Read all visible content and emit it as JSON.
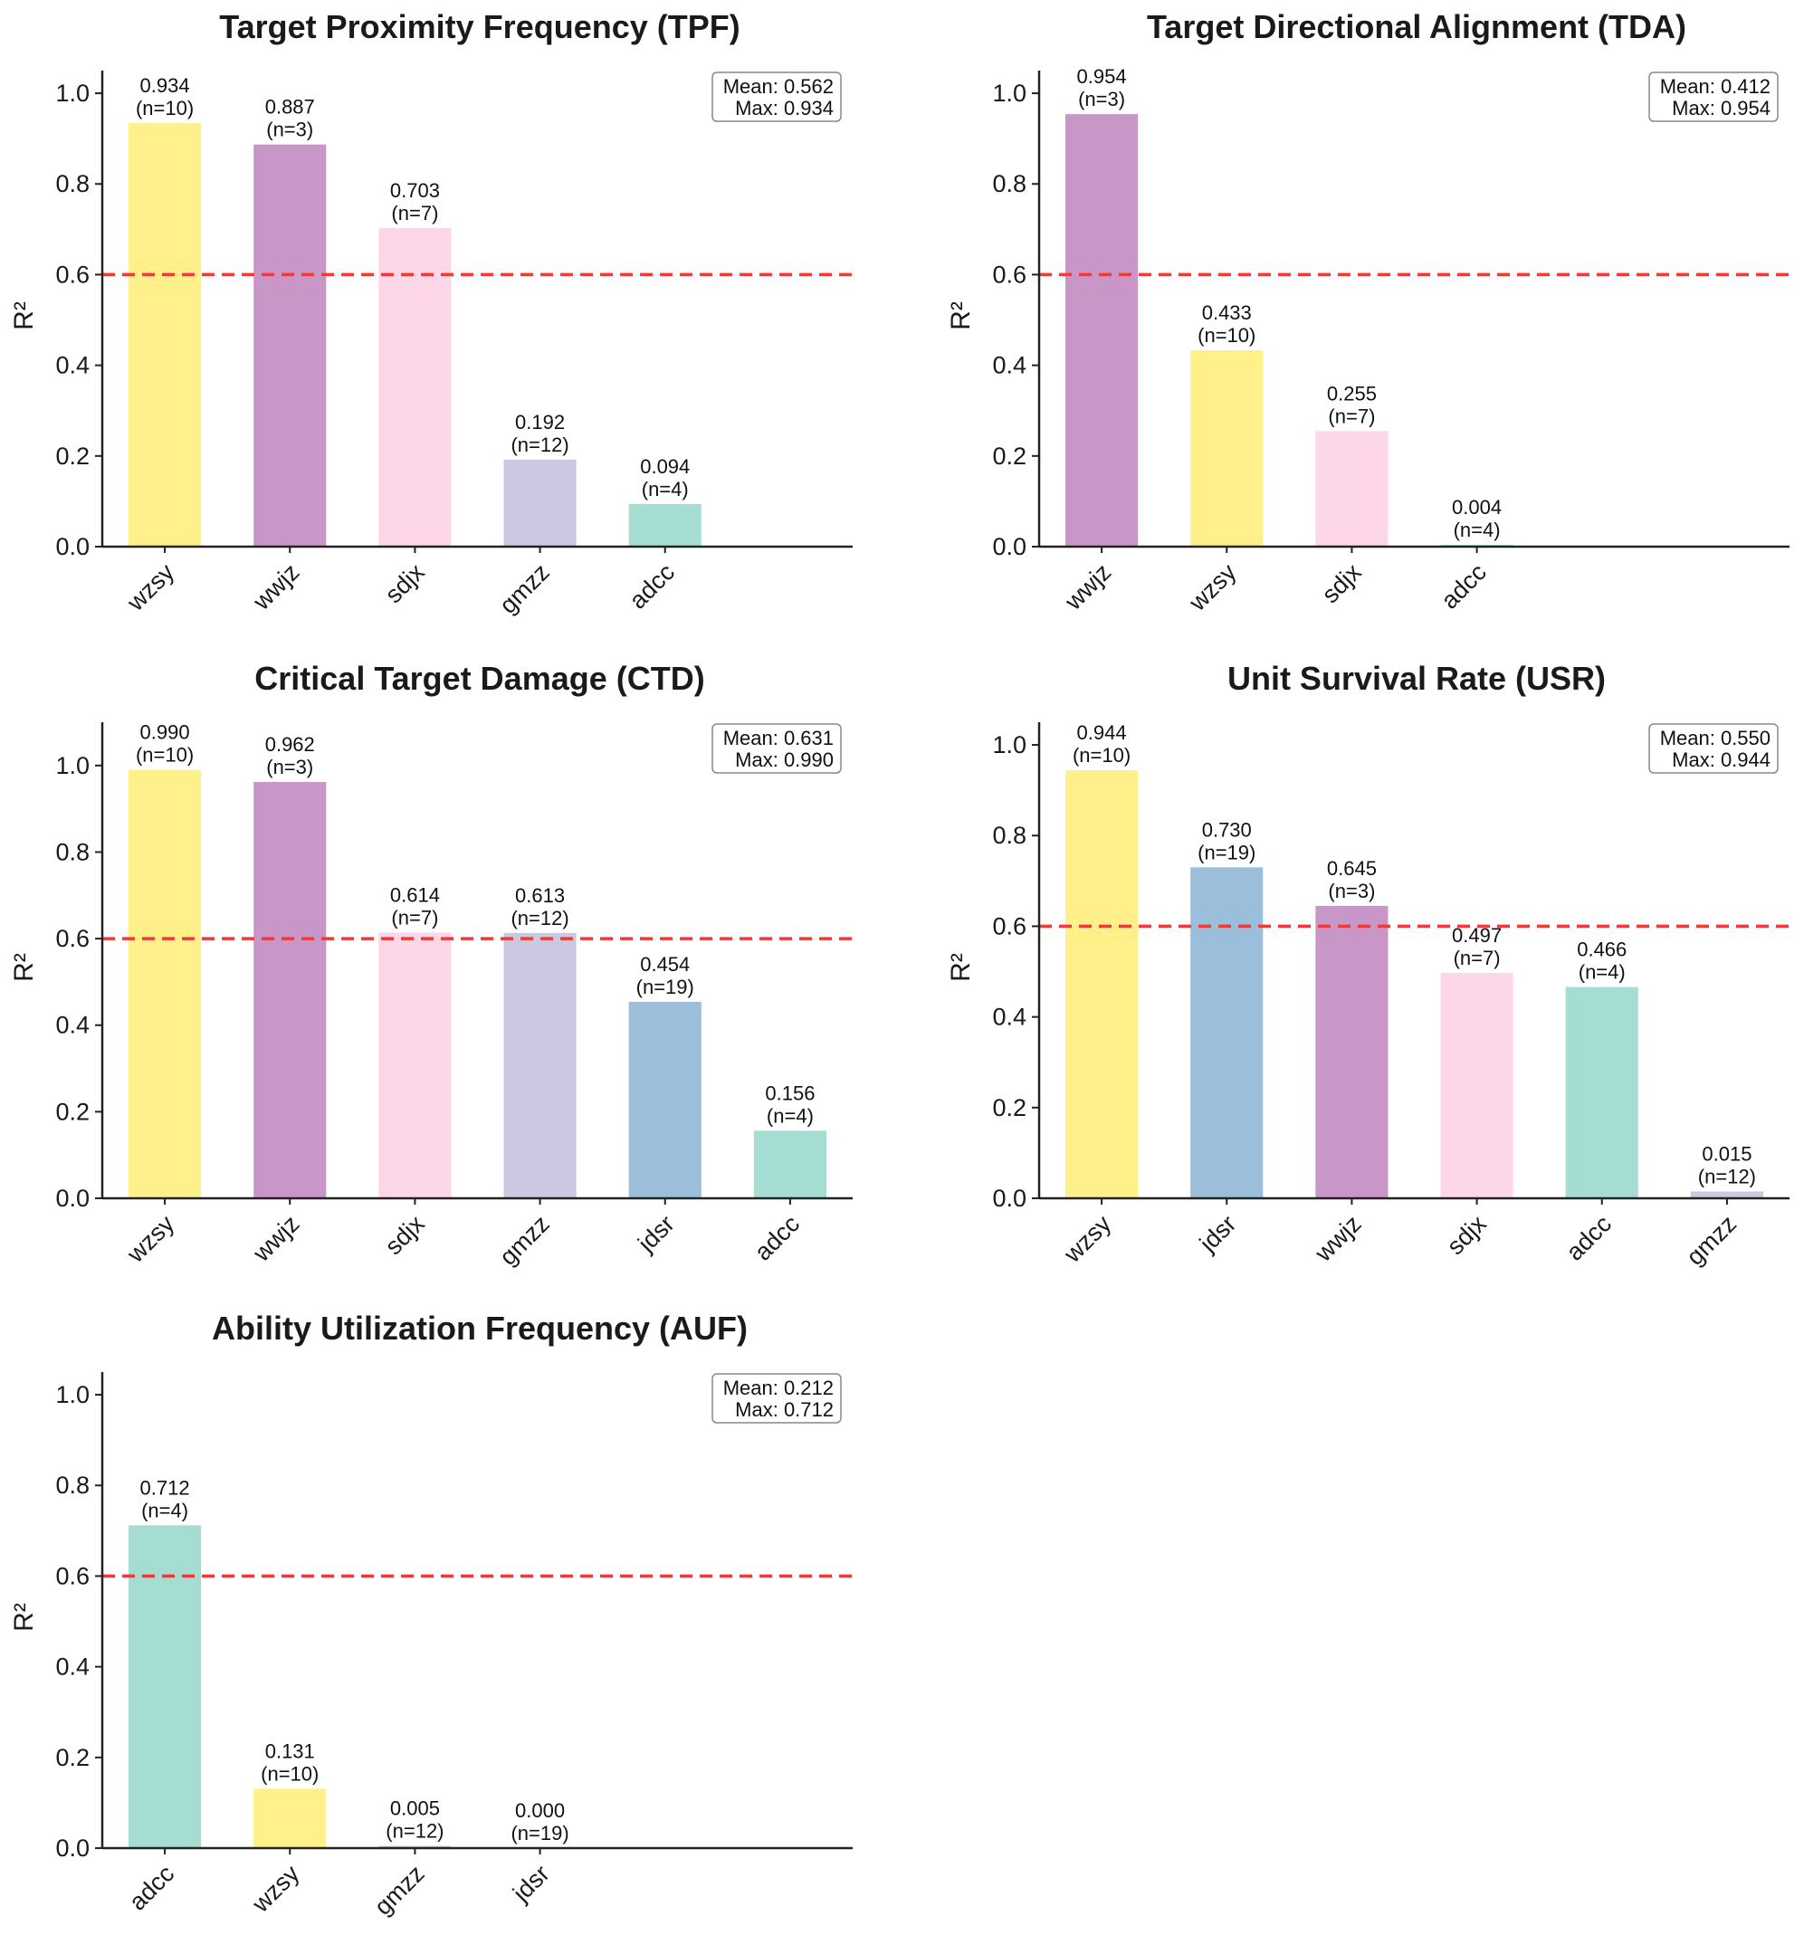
{
  "figure": {
    "threshold": 0.6,
    "threshold_color": "#f03a3a",
    "colors": {
      "wzsy": "#fff08a",
      "wwjz": "#c897c7",
      "sdjx": "#fdd7e8",
      "gmzz": "#cbc8e1",
      "adcc": "#a6ddd2",
      "jdsr": "#9bbfda"
    }
  },
  "chart_data": [
    {
      "type": "bar",
      "title": "Target Proximity Frequency (TPF)",
      "ylabel": "R²",
      "xlabel": "",
      "ylim": [
        0,
        1.05
      ],
      "yticks": [
        "0.0",
        "0.2",
        "0.4",
        "0.6",
        "0.8",
        "1.0"
      ],
      "slots": 6,
      "categories": [
        "wzsy",
        "wwjz",
        "sdjx",
        "gmzz",
        "adcc"
      ],
      "values": [
        0.934,
        0.887,
        0.703,
        0.192,
        0.094
      ],
      "value_labels": [
        "0.934",
        "0.887",
        "0.703",
        "0.192",
        "0.094"
      ],
      "n_labels": [
        "(n=10)",
        "(n=3)",
        "(n=7)",
        "(n=12)",
        "(n=4)"
      ],
      "stats": {
        "mean": "Mean: 0.562",
        "max": "Max: 0.934"
      }
    },
    {
      "type": "bar",
      "title": "Target Directional Alignment (TDA)",
      "ylabel": "R²",
      "xlabel": "",
      "ylim": [
        0,
        1.05
      ],
      "yticks": [
        "0.0",
        "0.2",
        "0.4",
        "0.6",
        "0.8",
        "1.0"
      ],
      "slots": 6,
      "categories": [
        "wwjz",
        "wzsy",
        "sdjx",
        "adcc"
      ],
      "values": [
        0.954,
        0.433,
        0.255,
        0.004
      ],
      "value_labels": [
        "0.954",
        "0.433",
        "0.255",
        "0.004"
      ],
      "n_labels": [
        "(n=3)",
        "(n=10)",
        "(n=7)",
        "(n=4)"
      ],
      "stats": {
        "mean": "Mean: 0.412",
        "max": "Max: 0.954"
      }
    },
    {
      "type": "bar",
      "title": "Critical Target Damage (CTD)",
      "ylabel": "R²",
      "xlabel": "",
      "ylim": [
        0,
        1.1
      ],
      "yticks": [
        "0.0",
        "0.2",
        "0.4",
        "0.6",
        "0.8",
        "1.0"
      ],
      "slots": 6,
      "categories": [
        "wzsy",
        "wwjz",
        "sdjx",
        "gmzz",
        "jdsr",
        "adcc"
      ],
      "values": [
        0.99,
        0.962,
        0.614,
        0.613,
        0.454,
        0.156
      ],
      "value_labels": [
        "0.990",
        "0.962",
        "0.614",
        "0.613",
        "0.454",
        "0.156"
      ],
      "n_labels": [
        "(n=10)",
        "(n=3)",
        "(n=7)",
        "(n=12)",
        "(n=19)",
        "(n=4)"
      ],
      "stats": {
        "mean": "Mean: 0.631",
        "max": "Max: 0.990"
      }
    },
    {
      "type": "bar",
      "title": "Unit Survival Rate (USR)",
      "ylabel": "R²",
      "xlabel": "",
      "ylim": [
        0,
        1.05
      ],
      "yticks": [
        "0.0",
        "0.2",
        "0.4",
        "0.6",
        "0.8",
        "1.0"
      ],
      "slots": 6,
      "categories": [
        "wzsy",
        "jdsr",
        "wwjz",
        "sdjx",
        "adcc",
        "gmzz"
      ],
      "values": [
        0.944,
        0.73,
        0.645,
        0.497,
        0.466,
        0.015
      ],
      "value_labels": [
        "0.944",
        "0.730",
        "0.645",
        "0.497",
        "0.466",
        "0.015"
      ],
      "n_labels": [
        "(n=10)",
        "(n=19)",
        "(n=3)",
        "(n=7)",
        "(n=4)",
        "(n=12)"
      ],
      "stats": {
        "mean": "Mean: 0.550",
        "max": "Max: 0.944"
      }
    },
    {
      "type": "bar",
      "title": "Ability Utilization Frequency (AUF)",
      "ylabel": "R²",
      "xlabel": "",
      "ylim": [
        0,
        1.05
      ],
      "yticks": [
        "0.0",
        "0.2",
        "0.4",
        "0.6",
        "0.8",
        "1.0"
      ],
      "slots": 6,
      "categories": [
        "adcc",
        "wzsy",
        "gmzz",
        "jdsr"
      ],
      "values": [
        0.712,
        0.131,
        0.005,
        0.0
      ],
      "value_labels": [
        "0.712",
        "0.131",
        "0.005",
        "0.000"
      ],
      "n_labels": [
        "(n=4)",
        "(n=10)",
        "(n=12)",
        "(n=19)"
      ],
      "stats": {
        "mean": "Mean: 0.212",
        "max": "Max: 0.712"
      }
    }
  ]
}
